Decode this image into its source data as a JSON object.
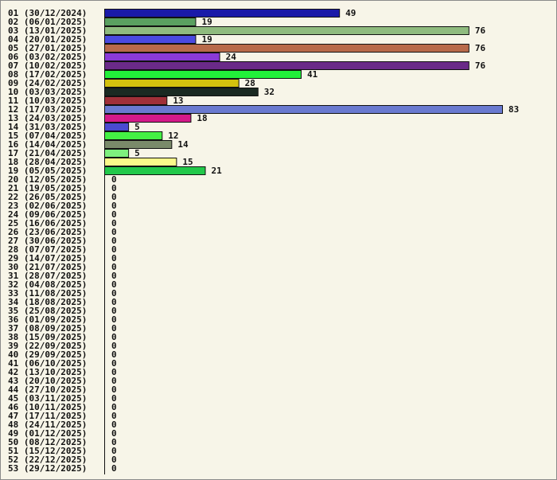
{
  "chart_data": {
    "type": "bar",
    "orientation": "horizontal",
    "title": "",
    "xlabel": "",
    "ylabel": "",
    "categories": [
      "01 (30/12/2024)",
      "02 (06/01/2025)",
      "03 (13/01/2025)",
      "04 (20/01/2025)",
      "05 (27/01/2025)",
      "06 (03/02/2025)",
      "07 (10/02/2025)",
      "08 (17/02/2025)",
      "09 (24/02/2025)",
      "10 (03/03/2025)",
      "11 (10/03/2025)",
      "12 (17/03/2025)",
      "13 (24/03/2025)",
      "14 (31/03/2025)",
      "15 (07/04/2025)",
      "16 (14/04/2025)",
      "17 (21/04/2025)",
      "18 (28/04/2025)",
      "19 (05/05/2025)",
      "20 (12/05/2025)",
      "21 (19/05/2025)",
      "22 (26/05/2025)",
      "23 (02/06/2025)",
      "24 (09/06/2025)",
      "25 (16/06/2025)",
      "26 (23/06/2025)",
      "27 (30/06/2025)",
      "28 (07/07/2025)",
      "29 (14/07/2025)",
      "30 (21/07/2025)",
      "31 (28/07/2025)",
      "32 (04/08/2025)",
      "33 (11/08/2025)",
      "34 (18/08/2025)",
      "35 (25/08/2025)",
      "36 (01/09/2025)",
      "37 (08/09/2025)",
      "38 (15/09/2025)",
      "39 (22/09/2025)",
      "40 (29/09/2025)",
      "41 (06/10/2025)",
      "42 (13/10/2025)",
      "43 (20/10/2025)",
      "44 (27/10/2025)",
      "45 (03/11/2025)",
      "46 (10/11/2025)",
      "47 (17/11/2025)",
      "48 (24/11/2025)",
      "49 (01/12/2025)",
      "50 (08/12/2025)",
      "51 (15/12/2025)",
      "52 (22/12/2025)",
      "53 (29/12/2025)"
    ],
    "values": [
      49,
      19,
      76,
      19,
      76,
      24,
      76,
      41,
      28,
      32,
      13,
      83,
      18,
      5,
      12,
      14,
      5,
      15,
      21,
      0,
      0,
      0,
      0,
      0,
      0,
      0,
      0,
      0,
      0,
      0,
      0,
      0,
      0,
      0,
      0,
      0,
      0,
      0,
      0,
      0,
      0,
      0,
      0,
      0,
      0,
      0,
      0,
      0,
      0,
      0,
      0,
      0,
      0
    ],
    "colors": [
      "#1a1aa8",
      "#5aa060",
      "#8fbb7e",
      "#4a4ae0",
      "#b86a4a",
      "#8a3ad8",
      "#6a2a88",
      "#22f03a",
      "#d4c20e",
      "#1a2a22",
      "#a03038",
      "#6a7ad0",
      "#d41a8a",
      "#4a4ad0",
      "#44f044",
      "#7a8a6a",
      "#7ef07e",
      "#fafa8a",
      "#22c84a"
    ],
    "xlim": [
      0,
      83
    ],
    "grid": false,
    "legend": "none"
  }
}
